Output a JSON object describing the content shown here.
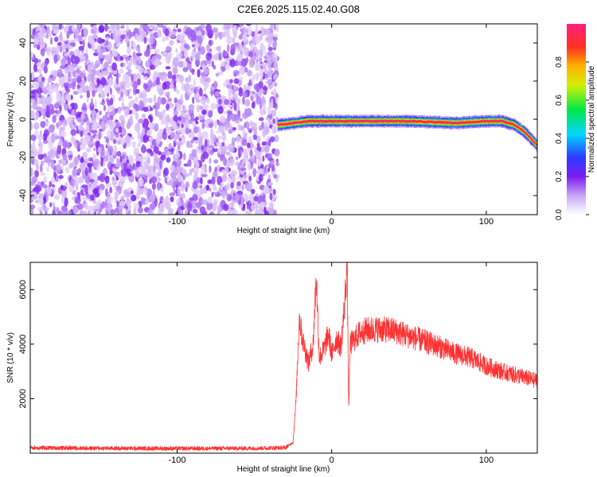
{
  "title": "C2E6.2025.115.02.40.G08",
  "chart_data": [
    {
      "type": "heatmap",
      "xlabel": "Height of straight line (km)",
      "ylabel": "Frequency (Hz)",
      "xlim": [
        -195,
        133
      ],
      "ylim": [
        -50,
        50
      ],
      "xticks": [
        -100,
        0,
        100
      ],
      "yticks": [
        -40,
        -20,
        0,
        20,
        40
      ],
      "colorbar": {
        "label": "Normalized spectral amplitude",
        "range": [
          0,
          1
        ],
        "ticks": [
          0.0,
          0.2,
          0.4,
          0.6,
          0.8
        ]
      },
      "noise_region": {
        "x": [
          -195,
          -35
        ],
        "y": [
          -50,
          50
        ],
        "amplitude": [
          0.05,
          0.2
        ]
      },
      "ridge": {
        "points": [
          [
            -35,
            -3
          ],
          [
            -25,
            -2
          ],
          [
            -15,
            -1
          ],
          [
            0,
            -1
          ],
          [
            20,
            -1
          ],
          [
            50,
            -1
          ],
          [
            80,
            -2
          ],
          [
            100,
            -1
          ],
          [
            110,
            -1
          ],
          [
            118,
            -3
          ],
          [
            125,
            -7
          ],
          [
            133,
            -14
          ]
        ],
        "peak_amplitude": 0.95
      },
      "grid": false,
      "legend": "none"
    },
    {
      "type": "line",
      "xlabel": "Height of straight line (km)",
      "ylabel": "SNR (10 * v/v)",
      "xlim": [
        -195,
        133
      ],
      "ylim": [
        0,
        7000
      ],
      "xticks": [
        -100,
        0,
        100
      ],
      "yticks": [
        2000,
        4000,
        6000
      ],
      "series": [
        {
          "color": "#ff3333",
          "envelope": [
            [
              -195,
              200
            ],
            [
              -150,
              180
            ],
            [
              -100,
              170
            ],
            [
              -50,
              180
            ],
            [
              -30,
              200
            ],
            [
              -25,
              400
            ],
            [
              -23,
              2000
            ],
            [
              -21,
              5000
            ],
            [
              -19,
              4200
            ],
            [
              -15,
              3300
            ],
            [
              -12,
              4000
            ],
            [
              -10,
              6500
            ],
            [
              -8,
              3500
            ],
            [
              -5,
              3800
            ],
            [
              -2,
              4400
            ],
            [
              0,
              3600
            ],
            [
              3,
              4200
            ],
            [
              6,
              3900
            ],
            [
              8,
              5200
            ],
            [
              10,
              6900
            ],
            [
              11,
              1600
            ],
            [
              12,
              4000
            ],
            [
              15,
              4200
            ],
            [
              18,
              4400
            ],
            [
              22,
              4500
            ],
            [
              30,
              4550
            ],
            [
              40,
              4500
            ],
            [
              50,
              4300
            ],
            [
              60,
              4100
            ],
            [
              70,
              3900
            ],
            [
              80,
              3650
            ],
            [
              90,
              3500
            ],
            [
              100,
              3200
            ],
            [
              110,
              3000
            ],
            [
              120,
              2850
            ],
            [
              133,
              2650
            ]
          ]
        }
      ],
      "grid": false,
      "legend": "none"
    }
  ]
}
